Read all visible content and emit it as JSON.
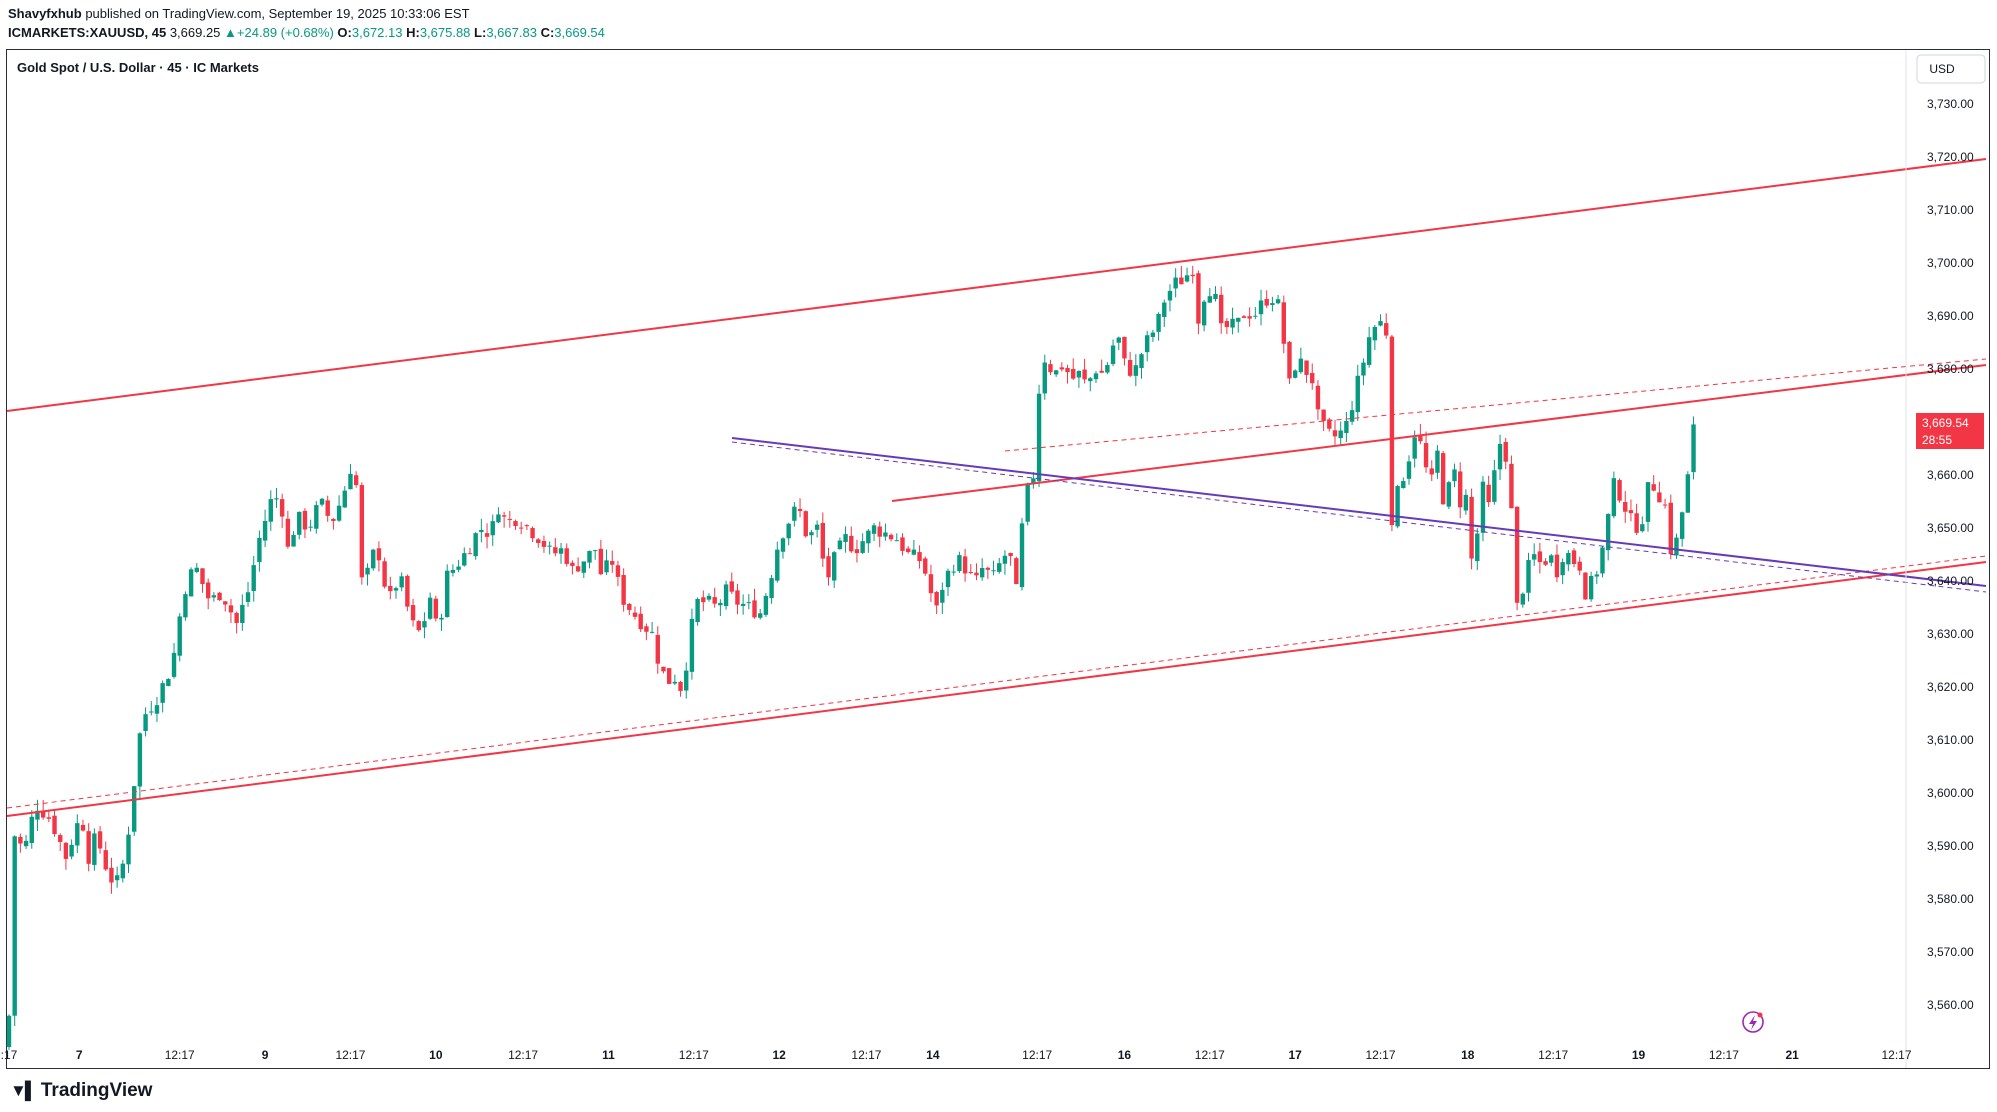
{
  "header": {
    "author": "Shavyfxhub",
    "published_text": "published on TradingView.com, September 19, 2025 10:33:06 EST"
  },
  "quote": {
    "symbol": "ICMARKETS:XAUUSD, 45",
    "last": "3,669.25",
    "arrow": "▲",
    "change": "+24.89 (+0.68%)",
    "o_label": "O:",
    "o": "3,672.13",
    "h_label": "H:",
    "h": "3,675.88",
    "l_label": "L:",
    "l": "3,667.83",
    "c_label": "C:",
    "c": "3,669.54"
  },
  "footer": {
    "brand": "TradingView"
  },
  "colors": {
    "up": "#089981",
    "down": "#f23645",
    "channel": "#f23645",
    "trend": "#673ab7"
  },
  "chart_data": {
    "type": "candlestick",
    "title": "Gold Spot / U.S. Dollar · 45 · IC Markets",
    "currency": "USD",
    "ylim": [
      3555,
      3737
    ],
    "y_ticks": [
      3730,
      3720,
      3710,
      3700,
      3690,
      3680,
      3670,
      3660,
      3650,
      3640,
      3630,
      3620,
      3610,
      3600,
      3590,
      3580,
      3570,
      3560
    ],
    "y_tick_labels": [
      "3,730.00",
      "3,720.00",
      "3,710.00",
      "3,700.00",
      "3,690.00",
      "3,680.00",
      "3,670.00",
      "3,660.00",
      "3,650.00",
      "3,640.00",
      "3,630.00",
      "3,620.00",
      "3,610.00",
      "3,600.00",
      "3,590.00",
      "3,580.00",
      "3,570.00",
      "3,560.00"
    ],
    "xlim": [
      0,
      1000
    ],
    "x_ticks": [
      {
        "t": 0,
        "label": ":17"
      },
      {
        "t": 37,
        "label": "7"
      },
      {
        "t": 90,
        "label": "12:17"
      },
      {
        "t": 135,
        "label": "9"
      },
      {
        "t": 180,
        "label": "12:17"
      },
      {
        "t": 225,
        "label": "10"
      },
      {
        "t": 271,
        "label": "12:17"
      },
      {
        "t": 316,
        "label": "11"
      },
      {
        "t": 361,
        "label": "12:17"
      },
      {
        "t": 406,
        "label": "12"
      },
      {
        "t": 452,
        "label": "12:17"
      },
      {
        "t": 487,
        "label": "14"
      },
      {
        "t": 542,
        "label": "12:17"
      },
      {
        "t": 588,
        "label": "16"
      },
      {
        "t": 633,
        "label": "12:17"
      },
      {
        "t": 678,
        "label": "17"
      },
      {
        "t": 723,
        "label": "12:17"
      },
      {
        "t": 769,
        "label": "18"
      },
      {
        "t": 814,
        "label": "12:17"
      },
      {
        "t": 859,
        "label": "19"
      },
      {
        "t": 904,
        "label": "12:17"
      },
      {
        "t": 940,
        "label": "21"
      },
      {
        "t": 995,
        "label": "12:17"
      }
    ],
    "last_price_label": "3,669.54",
    "countdown": "28:55",
    "last_price": 3669.54,
    "anchors": [
      [
        0,
        3558
      ],
      [
        3,
        3592
      ],
      [
        8,
        3589
      ],
      [
        14,
        3598
      ],
      [
        22,
        3595
      ],
      [
        30,
        3588
      ],
      [
        38,
        3596
      ],
      [
        42,
        3588
      ],
      [
        46,
        3592
      ],
      [
        53,
        3584
      ],
      [
        58,
        3583
      ],
      [
        62,
        3590
      ],
      [
        66,
        3602
      ],
      [
        70,
        3614
      ],
      [
        78,
        3618
      ],
      [
        86,
        3624
      ],
      [
        92,
        3638
      ],
      [
        98,
        3643
      ],
      [
        106,
        3636
      ],
      [
        112,
        3638
      ],
      [
        120,
        3632
      ],
      [
        126,
        3638
      ],
      [
        132,
        3648
      ],
      [
        138,
        3655
      ],
      [
        143,
        3656
      ],
      [
        147,
        3646
      ],
      [
        152,
        3652
      ],
      [
        158,
        3650
      ],
      [
        164,
        3655
      ],
      [
        170,
        3651
      ],
      [
        176,
        3656
      ],
      [
        182,
        3664
      ],
      [
        187,
        3634
      ],
      [
        190,
        3645
      ],
      [
        195,
        3645
      ],
      [
        200,
        3636
      ],
      [
        206,
        3641
      ],
      [
        212,
        3632
      ],
      [
        217,
        3630
      ],
      [
        222,
        3637
      ],
      [
        226,
        3630
      ],
      [
        231,
        3641
      ],
      [
        236,
        3643
      ],
      [
        242,
        3646
      ],
      [
        248,
        3650
      ],
      [
        254,
        3649
      ],
      [
        258,
        3654
      ],
      [
        262,
        3651
      ],
      [
        268,
        3652
      ],
      [
        274,
        3650
      ],
      [
        280,
        3648
      ],
      [
        286,
        3645
      ],
      [
        292,
        3646
      ],
      [
        297,
        3642
      ],
      [
        303,
        3644
      ],
      [
        309,
        3646
      ],
      [
        313,
        3640
      ],
      [
        317,
        3645
      ],
      [
        323,
        3637
      ],
      [
        329,
        3634
      ],
      [
        334,
        3632
      ],
      [
        339,
        3630
      ],
      [
        343,
        3624
      ],
      [
        347,
        3621
      ],
      [
        352,
        3622
      ],
      [
        355,
        3619
      ],
      [
        359,
        3630
      ],
      [
        363,
        3636
      ],
      [
        368,
        3636
      ],
      [
        373,
        3635
      ],
      [
        378,
        3638
      ],
      [
        384,
        3636
      ],
      [
        390,
        3635
      ],
      [
        396,
        3634
      ],
      [
        401,
        3640
      ],
      [
        406,
        3648
      ],
      [
        412,
        3652
      ],
      [
        416,
        3654
      ],
      [
        421,
        3648
      ],
      [
        426,
        3650
      ],
      [
        431,
        3640
      ],
      [
        436,
        3645
      ],
      [
        441,
        3648
      ],
      [
        446,
        3646
      ],
      [
        451,
        3648
      ],
      [
        456,
        3650
      ],
      [
        462,
        3649
      ],
      [
        468,
        3648
      ],
      [
        474,
        3645
      ],
      [
        480,
        3644
      ],
      [
        485,
        3640
      ],
      [
        488,
        3633
      ],
      [
        492,
        3639
      ],
      [
        497,
        3643
      ],
      [
        502,
        3644
      ],
      [
        506,
        3641
      ],
      [
        510,
        3640
      ],
      [
        514,
        3643
      ],
      [
        518,
        3640
      ],
      [
        522,
        3643
      ],
      [
        527,
        3646
      ],
      [
        531,
        3638
      ],
      [
        534,
        3650
      ],
      [
        536,
        3656
      ],
      [
        540,
        3660
      ],
      [
        543,
        3676
      ],
      [
        546,
        3682
      ],
      [
        551,
        3679
      ],
      [
        556,
        3681
      ],
      [
        560,
        3678
      ],
      [
        564,
        3679
      ],
      [
        568,
        3677
      ],
      [
        573,
        3680
      ],
      [
        577,
        3679
      ],
      [
        580,
        3682
      ],
      [
        584,
        3687
      ],
      [
        588,
        3681
      ],
      [
        593,
        3679
      ],
      [
        597,
        3683
      ],
      [
        601,
        3686
      ],
      [
        605,
        3688
      ],
      [
        609,
        3693
      ],
      [
        614,
        3696
      ],
      [
        619,
        3697
      ],
      [
        624,
        3699
      ],
      [
        626,
        3688
      ],
      [
        630,
        3694
      ],
      [
        635,
        3696
      ],
      [
        638,
        3687
      ],
      [
        643,
        3688
      ],
      [
        647,
        3688
      ],
      [
        652,
        3691
      ],
      [
        656,
        3690
      ],
      [
        660,
        3692
      ],
      [
        665,
        3694
      ],
      [
        669,
        3692
      ],
      [
        672,
        3685
      ],
      [
        675,
        3677
      ],
      [
        679,
        3682
      ],
      [
        683,
        3680
      ],
      [
        687,
        3678
      ],
      [
        690,
        3671
      ],
      [
        694,
        3668
      ],
      [
        698,
        3667
      ],
      [
        702,
        3668
      ],
      [
        706,
        3670
      ],
      [
        709,
        3675
      ],
      [
        713,
        3680
      ],
      [
        717,
        3686
      ],
      [
        720,
        3688
      ],
      [
        724,
        3689
      ],
      [
        727,
        3686
      ],
      [
        729,
        3652
      ],
      [
        733,
        3658
      ],
      [
        737,
        3662
      ],
      [
        741,
        3668
      ],
      [
        745,
        3665
      ],
      [
        749,
        3657
      ],
      [
        753,
        3664
      ],
      [
        757,
        3653
      ],
      [
        761,
        3662
      ],
      [
        765,
        3655
      ],
      [
        769,
        3656
      ],
      [
        772,
        3638
      ],
      [
        776,
        3660
      ],
      [
        779,
        3652
      ],
      [
        782,
        3658
      ],
      [
        786,
        3666
      ],
      [
        790,
        3663
      ],
      [
        793,
        3648
      ],
      [
        795,
        3635
      ],
      [
        799,
        3640
      ],
      [
        803,
        3645
      ],
      [
        808,
        3643
      ],
      [
        812,
        3645
      ],
      [
        816,
        3642
      ],
      [
        820,
        3646
      ],
      [
        824,
        3644
      ],
      [
        828,
        3643
      ],
      [
        831,
        3638
      ],
      [
        835,
        3640
      ],
      [
        839,
        3644
      ],
      [
        842,
        3650
      ],
      [
        846,
        3658
      ],
      [
        850,
        3656
      ],
      [
        854,
        3652
      ],
      [
        857,
        3650
      ],
      [
        861,
        3652
      ],
      [
        865,
        3659
      ],
      [
        869,
        3657
      ],
      [
        873,
        3654
      ],
      [
        876,
        3646
      ],
      [
        880,
        3648
      ],
      [
        884,
        3658
      ],
      [
        888,
        3664
      ],
      [
        890,
        3669.54
      ]
    ]
  }
}
